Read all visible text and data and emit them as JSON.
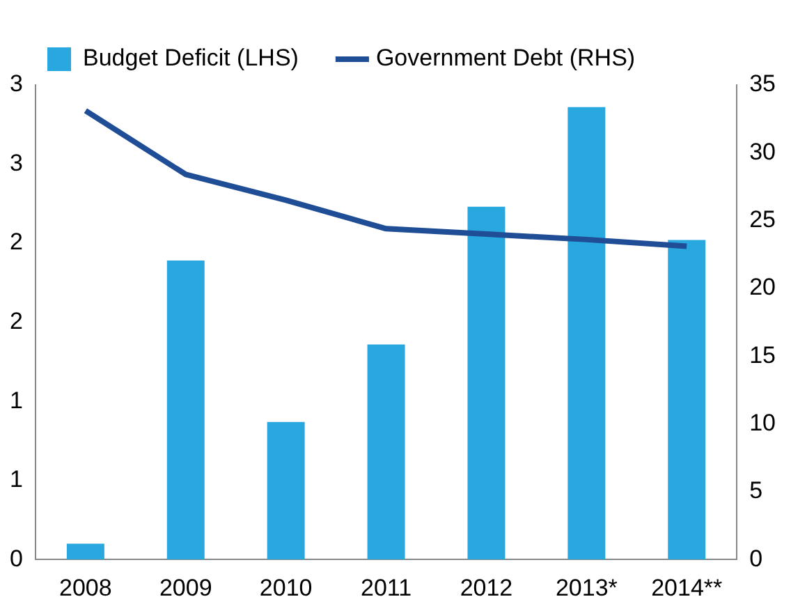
{
  "chart_data": {
    "type": "bar",
    "categories": [
      "2008",
      "2009",
      "2010",
      "2011",
      "2012",
      "2013*",
      "2014**"
    ],
    "series": [
      {
        "name": "Budget Deficit (LHS)",
        "color": "#29a8e0",
        "values": [
          0.1,
          1.89,
          0.87,
          1.36,
          2.23,
          2.86,
          2.02
        ]
      },
      {
        "name": "Government Debt (RHS)",
        "type": "line",
        "axis": "y2",
        "color": "#1f4e96",
        "values": [
          33.1,
          28.4,
          26.5,
          24.4,
          24.0,
          23.6,
          23.1
        ]
      }
    ],
    "ylim": [
      0,
      3
    ],
    "yticks": [
      0,
      {
        "value": 0.5,
        "label": "1"
      },
      1,
      {
        "value": 1.5,
        "label": "2"
      },
      2,
      {
        "value": 2.5,
        "label": "3"
      },
      3
    ],
    "y2lim": [
      0,
      35
    ],
    "y2ticks": [
      0,
      5,
      10,
      15,
      20,
      25,
      30,
      35
    ],
    "legend": "top left",
    "grid": false,
    "marker": "none",
    "line_style": "solid"
  }
}
